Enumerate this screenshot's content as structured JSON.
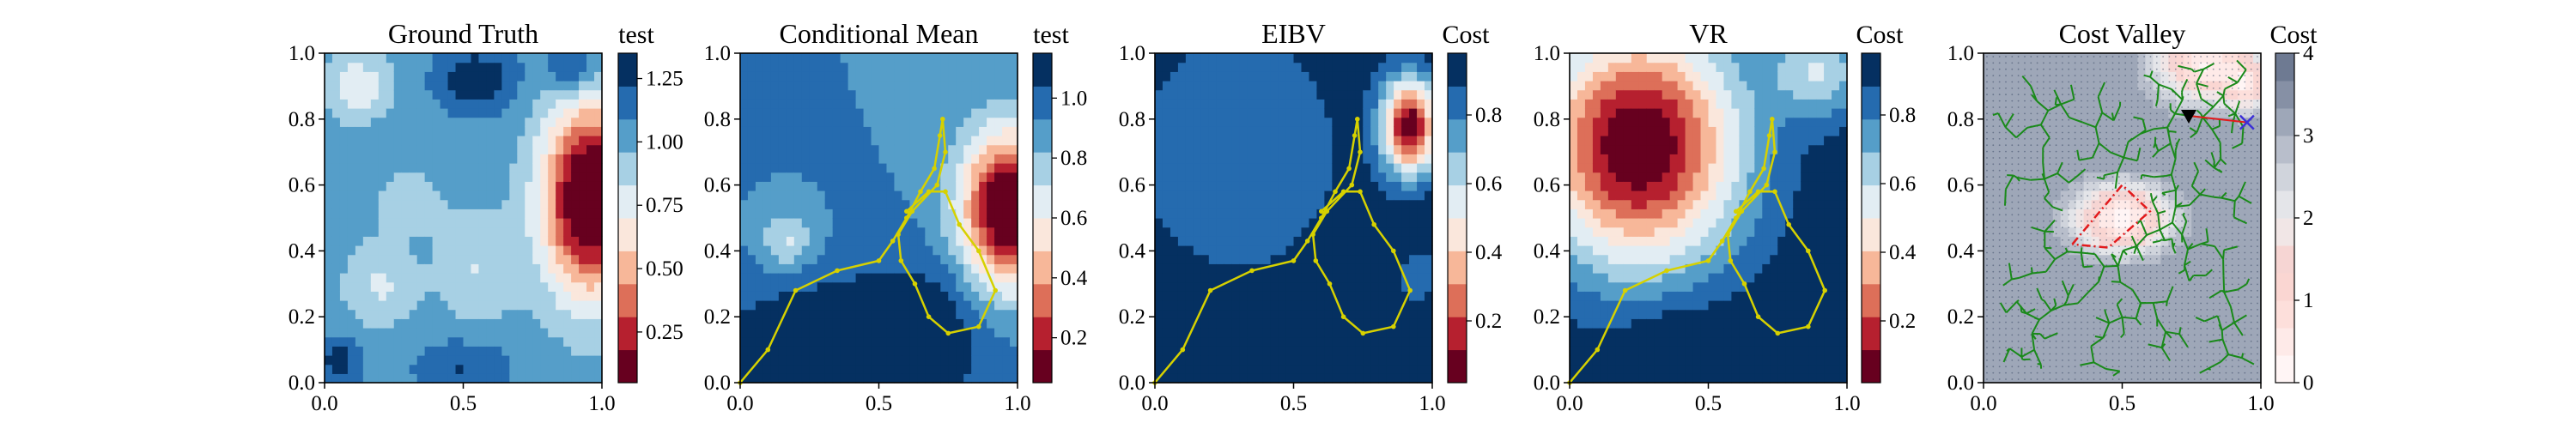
{
  "figure": {
    "panels": [
      {
        "title": "Ground Truth",
        "colorbar_title": "test",
        "colorbar_ticks": [
          0.25,
          0.5,
          0.75,
          1.0,
          1.25
        ],
        "colorbar_tick_labels": [
          "0.25",
          "0.50",
          "0.75",
          "1.00",
          "1.25"
        ]
      },
      {
        "title": "Conditional Mean",
        "colorbar_title": "test",
        "colorbar_ticks": [
          0.2,
          0.4,
          0.6,
          0.8,
          1.0
        ],
        "colorbar_tick_labels": [
          "0.2",
          "0.4",
          "0.6",
          "0.8",
          "1.0"
        ]
      },
      {
        "title": "EIBV",
        "colorbar_title": "Cost",
        "colorbar_ticks": [
          0.2,
          0.4,
          0.6,
          0.8
        ],
        "colorbar_tick_labels": [
          "0.2",
          "0.4",
          "0.6",
          "0.8"
        ]
      },
      {
        "title": "VR",
        "colorbar_title": "Cost",
        "colorbar_ticks": [
          0.2,
          0.4,
          0.6,
          0.8
        ],
        "colorbar_tick_labels": [
          "0.2",
          "0.4",
          "0.6",
          "0.8"
        ]
      },
      {
        "title": "Cost Valley",
        "colorbar_title": "Cost",
        "colorbar_ticks": [
          0,
          1,
          2,
          3,
          4
        ],
        "colorbar_tick_labels": [
          "0",
          "1",
          "2",
          "3",
          "4"
        ]
      }
    ]
  },
  "chart_data": [
    {
      "type": "heatmap",
      "title": "Ground Truth",
      "colorbar_title": "test",
      "colormap": "RdBu",
      "crange": [
        0.05,
        1.35
      ],
      "xlim": [
        0,
        1
      ],
      "ylim": [
        0,
        1
      ],
      "xticks": [
        0.0,
        0.5,
        1.0
      ],
      "yticks": [
        0.0,
        0.2,
        0.4,
        0.6,
        0.8,
        1.0
      ],
      "features": [
        {
          "kind": "blob",
          "x": 0.96,
          "y": 0.56,
          "sx": 0.12,
          "sy": 0.2,
          "amp": -1.15
        },
        {
          "kind": "blob",
          "x": 0.55,
          "y": 0.92,
          "sx": 0.1,
          "sy": 0.07,
          "amp": 0.3
        },
        {
          "kind": "blob",
          "x": 0.9,
          "y": 0.95,
          "sx": 0.07,
          "sy": 0.05,
          "amp": 0.3
        },
        {
          "kind": "blob",
          "x": 0.05,
          "y": 0.07,
          "sx": 0.06,
          "sy": 0.05,
          "amp": 0.25
        },
        {
          "kind": "blob",
          "x": 0.5,
          "y": 0.05,
          "sx": 0.12,
          "sy": 0.06,
          "amp": 0.2
        },
        {
          "kind": "blob",
          "x": 0.12,
          "y": 0.9,
          "sx": 0.08,
          "sy": 0.07,
          "amp": -0.3
        },
        {
          "kind": "blob",
          "x": 0.2,
          "y": 0.3,
          "sx": 0.09,
          "sy": 0.09,
          "amp": -0.22
        },
        {
          "kind": "blob",
          "x": 0.55,
          "y": 0.35,
          "sx": 0.1,
          "sy": 0.12,
          "amp": -0.2
        },
        {
          "kind": "blob",
          "x": 0.3,
          "y": 0.55,
          "sx": 0.08,
          "sy": 0.06,
          "amp": -0.18
        }
      ],
      "base": 1.03
    },
    {
      "type": "heatmap",
      "title": "Conditional Mean",
      "colorbar_title": "test",
      "colormap": "RdBu",
      "crange": [
        0.05,
        1.15
      ],
      "xlim": [
        0,
        1
      ],
      "ylim": [
        0,
        1
      ],
      "xticks": [
        0.0,
        0.5,
        1.0
      ],
      "yticks": [
        0.0,
        0.2,
        0.4,
        0.6,
        0.8,
        1.0
      ],
      "features": [
        {
          "kind": "blob",
          "x": 0.97,
          "y": 0.53,
          "sx": 0.12,
          "sy": 0.16,
          "amp": -1.0
        },
        {
          "kind": "blob",
          "x": 0.17,
          "y": 0.43,
          "sx": 0.07,
          "sy": 0.06,
          "amp": -0.25
        },
        {
          "kind": "blob",
          "x": 0.3,
          "y": 0.1,
          "sx": 0.3,
          "sy": 0.16,
          "amp": 0.22
        },
        {
          "kind": "blob",
          "x": 0.65,
          "y": 0.15,
          "sx": 0.15,
          "sy": 0.15,
          "amp": 0.18
        }
      ],
      "base": 0.93,
      "path": [
        [
          0.0,
          0.0
        ],
        [
          0.1,
          0.1
        ],
        [
          0.2,
          0.28
        ],
        [
          0.35,
          0.34
        ],
        [
          0.5,
          0.37
        ],
        [
          0.55,
          0.43
        ],
        [
          0.6,
          0.5
        ],
        [
          0.65,
          0.58
        ],
        [
          0.7,
          0.65
        ],
        [
          0.72,
          0.75
        ],
        [
          0.73,
          0.8
        ],
        [
          0.74,
          0.7
        ],
        [
          0.71,
          0.6
        ],
        [
          0.62,
          0.52
        ],
        [
          0.57,
          0.45
        ],
        [
          0.58,
          0.37
        ],
        [
          0.63,
          0.3
        ],
        [
          0.68,
          0.2
        ],
        [
          0.75,
          0.15
        ],
        [
          0.86,
          0.17
        ],
        [
          0.92,
          0.28
        ],
        [
          0.86,
          0.4
        ],
        [
          0.79,
          0.48
        ],
        [
          0.74,
          0.58
        ],
        [
          0.68,
          0.58
        ],
        [
          0.6,
          0.52
        ]
      ]
    },
    {
      "type": "heatmap",
      "title": "EIBV",
      "colorbar_title": "Cost",
      "colormap": "RdBu",
      "crange": [
        0.02,
        0.98
      ],
      "xlim": [
        0,
        1
      ],
      "ylim": [
        0,
        1
      ],
      "xticks": [
        0.0,
        0.5,
        1.0
      ],
      "yticks": [
        0.0,
        0.2,
        0.4,
        0.6,
        0.8,
        1.0
      ],
      "features": [
        {
          "kind": "blob",
          "x": 0.92,
          "y": 0.78,
          "sx": 0.07,
          "sy": 0.1,
          "amp": -0.92
        },
        {
          "kind": "blob",
          "x": 0.3,
          "y": 0.7,
          "sx": 0.28,
          "sy": 0.28,
          "amp": -0.16
        },
        {
          "kind": "blob",
          "x": 0.95,
          "y": 0.32,
          "sx": 0.05,
          "sy": 0.08,
          "amp": -0.12
        }
      ],
      "base": 0.96,
      "path": [
        [
          0.0,
          0.0
        ],
        [
          0.1,
          0.1
        ],
        [
          0.2,
          0.28
        ],
        [
          0.35,
          0.34
        ],
        [
          0.5,
          0.37
        ],
        [
          0.55,
          0.43
        ],
        [
          0.6,
          0.5
        ],
        [
          0.65,
          0.58
        ],
        [
          0.7,
          0.65
        ],
        [
          0.72,
          0.75
        ],
        [
          0.73,
          0.8
        ],
        [
          0.74,
          0.7
        ],
        [
          0.71,
          0.6
        ],
        [
          0.62,
          0.52
        ],
        [
          0.57,
          0.45
        ],
        [
          0.58,
          0.37
        ],
        [
          0.63,
          0.3
        ],
        [
          0.68,
          0.2
        ],
        [
          0.75,
          0.15
        ],
        [
          0.86,
          0.17
        ],
        [
          0.92,
          0.28
        ],
        [
          0.86,
          0.4
        ],
        [
          0.79,
          0.48
        ],
        [
          0.74,
          0.58
        ],
        [
          0.68,
          0.58
        ],
        [
          0.6,
          0.52
        ]
      ]
    },
    {
      "type": "heatmap",
      "title": "VR",
      "colorbar_title": "Cost",
      "colormap": "RdBu",
      "crange": [
        0.02,
        0.98
      ],
      "xlim": [
        0,
        1
      ],
      "ylim": [
        0,
        1
      ],
      "xticks": [
        0.0,
        0.5,
        1.0
      ],
      "yticks": [
        0.0,
        0.2,
        0.4,
        0.6,
        0.8,
        1.0
      ],
      "features": [
        {
          "kind": "blob",
          "x": 0.25,
          "y": 0.72,
          "sx": 0.26,
          "sy": 0.26,
          "amp": -0.95
        },
        {
          "kind": "blob",
          "x": 0.9,
          "y": 0.95,
          "sx": 0.12,
          "sy": 0.1,
          "amp": -0.35
        },
        {
          "kind": "blob",
          "x": 0.4,
          "y": 0.1,
          "sx": 0.14,
          "sy": 0.1,
          "amp": 0.1
        }
      ],
      "base": 0.96,
      "path": [
        [
          0.0,
          0.0
        ],
        [
          0.1,
          0.1
        ],
        [
          0.2,
          0.28
        ],
        [
          0.35,
          0.34
        ],
        [
          0.5,
          0.37
        ],
        [
          0.55,
          0.43
        ],
        [
          0.6,
          0.5
        ],
        [
          0.65,
          0.58
        ],
        [
          0.7,
          0.65
        ],
        [
          0.72,
          0.75
        ],
        [
          0.73,
          0.8
        ],
        [
          0.74,
          0.7
        ],
        [
          0.71,
          0.6
        ],
        [
          0.62,
          0.52
        ],
        [
          0.57,
          0.45
        ],
        [
          0.58,
          0.37
        ],
        [
          0.63,
          0.3
        ],
        [
          0.68,
          0.2
        ],
        [
          0.75,
          0.15
        ],
        [
          0.86,
          0.17
        ],
        [
          0.92,
          0.28
        ],
        [
          0.86,
          0.4
        ],
        [
          0.79,
          0.48
        ],
        [
          0.74,
          0.58
        ],
        [
          0.68,
          0.58
        ],
        [
          0.6,
          0.52
        ]
      ]
    },
    {
      "type": "heatmap",
      "title": "Cost Valley",
      "colorbar_title": "Cost",
      "colormap": "Reds-to-slate",
      "crange": [
        0,
        4
      ],
      "xlim": [
        0,
        1
      ],
      "ylim": [
        0,
        1
      ],
      "xticks": [
        0.0,
        0.5,
        1.0
      ],
      "yticks": [
        0.0,
        0.2,
        0.4,
        0.6,
        0.8,
        1.0
      ],
      "base": 3.3,
      "features": [
        {
          "kind": "blob",
          "x": 0.5,
          "y": 0.5,
          "sx": 0.12,
          "sy": 0.07,
          "amp": -3.2
        },
        {
          "kind": "blob",
          "x": 0.8,
          "y": 0.97,
          "sx": 0.12,
          "sy": 0.08,
          "amp": -3.0
        },
        {
          "kind": "blob",
          "x": 0.95,
          "y": 0.9,
          "sx": 0.05,
          "sy": 0.05,
          "amp": -2.0
        }
      ],
      "polygon": [
        [
          0.32,
          0.42
        ],
        [
          0.5,
          0.6
        ],
        [
          0.6,
          0.52
        ],
        [
          0.45,
          0.41
        ],
        [
          0.32,
          0.42
        ]
      ],
      "current_marker": [
        0.74,
        0.81
      ],
      "target_marker": [
        0.95,
        0.79
      ],
      "tree_root": [
        0.74,
        0.81
      ]
    }
  ]
}
